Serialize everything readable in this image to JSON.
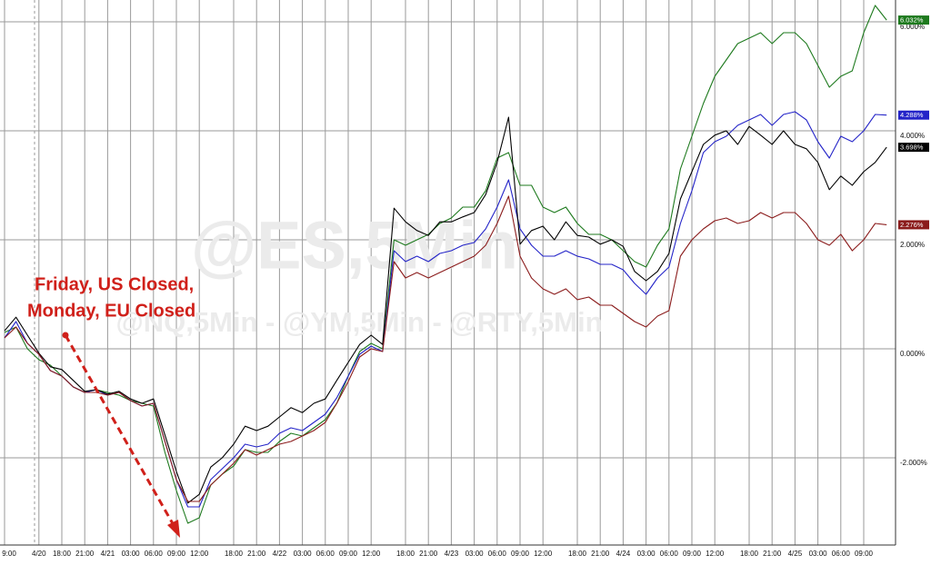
{
  "chart_data": {
    "type": "line",
    "watermark": [
      "@ES,5Min",
      "@NQ,5Min - @YM,5Min - @RTY,5Min"
    ],
    "annotations": [
      "Friday, US Closed,",
      "Monday, EU Closed"
    ],
    "categories": [
      "9:00",
      null,
      null,
      "4/20",
      null,
      "18:00",
      null,
      "21:00",
      null,
      "4/21",
      null,
      "03:00",
      null,
      "06:00",
      null,
      "09:00",
      null,
      "12:00",
      null,
      null,
      "18:00",
      null,
      "21:00",
      null,
      "4/22",
      null,
      "03:00",
      null,
      "06:00",
      null,
      "09:00",
      null,
      "12:00",
      null,
      null,
      "18:00",
      null,
      "21:00",
      null,
      "4/23",
      null,
      "03:00",
      null,
      "06:00",
      null,
      "09:00",
      null,
      "12:00",
      null,
      null,
      "18:00",
      null,
      "21:00",
      null,
      "4/24",
      null,
      "03:00",
      null,
      "06:00",
      null,
      "09:00",
      null,
      "12:00",
      null,
      null,
      "18:00",
      null,
      "21:00",
      null,
      "4/25",
      null,
      "03:00",
      null,
      "06:00",
      null,
      "09:00",
      null,
      null
    ],
    "series": [
      {
        "color": "#1e7a1e",
        "value_label": "6.032%",
        "values": [
          0.3,
          0.4,
          0.0,
          -0.2,
          -0.3,
          -0.5,
          -0.7,
          -0.8,
          -0.75,
          -0.8,
          -0.85,
          -0.95,
          -1.0,
          -1.05,
          -1.9,
          -2.6,
          -3.2,
          -3.1,
          -2.5,
          -2.3,
          -2.15,
          -1.85,
          -1.9,
          -1.9,
          -1.7,
          -1.55,
          -1.6,
          -1.45,
          -1.3,
          -1.0,
          -0.5,
          -0.05,
          0.1,
          0.0,
          2.0,
          1.9,
          2.0,
          2.1,
          2.3,
          2.4,
          2.6,
          2.6,
          2.9,
          3.5,
          3.6,
          3.0,
          3.0,
          2.6,
          2.5,
          2.6,
          2.3,
          2.1,
          2.1,
          2.0,
          1.8,
          1.6,
          1.5,
          1.9,
          2.2,
          3.3,
          3.9,
          4.5,
          5.0,
          5.3,
          5.6,
          5.7,
          5.8,
          5.6,
          5.8,
          5.8,
          5.6,
          5.2,
          4.8,
          5.0,
          5.1,
          5.8,
          6.3,
          6.032
        ]
      },
      {
        "color": "#2424c8",
        "value_label": "4.288%",
        "values": [
          0.2,
          0.5,
          0.1,
          -0.1,
          -0.4,
          -0.5,
          -0.7,
          -0.8,
          -0.75,
          -0.85,
          -0.8,
          -0.95,
          -1.05,
          -1.0,
          -1.7,
          -2.4,
          -2.9,
          -2.9,
          -2.4,
          -2.2,
          -2.0,
          -1.75,
          -1.8,
          -1.75,
          -1.55,
          -1.45,
          -1.5,
          -1.35,
          -1.2,
          -0.9,
          -0.5,
          -0.1,
          0.05,
          -0.05,
          1.8,
          1.6,
          1.7,
          1.6,
          1.75,
          1.8,
          1.9,
          1.95,
          2.2,
          2.6,
          3.1,
          2.2,
          1.9,
          1.7,
          1.7,
          1.8,
          1.7,
          1.65,
          1.55,
          1.55,
          1.45,
          1.2,
          1.0,
          1.3,
          1.5,
          2.3,
          2.9,
          3.6,
          3.8,
          3.9,
          4.1,
          4.2,
          4.3,
          4.1,
          4.3,
          4.35,
          4.2,
          3.8,
          3.5,
          3.9,
          3.8,
          4.0,
          4.3,
          4.288
        ]
      },
      {
        "color": "#000000",
        "value_label": "3.698%",
        "values": [
          0.33,
          0.58,
          0.25,
          -0.08,
          -0.33,
          -0.38,
          -0.58,
          -0.78,
          -0.75,
          -0.83,
          -0.78,
          -0.92,
          -1.0,
          -0.92,
          -1.58,
          -2.25,
          -2.83,
          -2.67,
          -2.17,
          -2.0,
          -1.75,
          -1.42,
          -1.5,
          -1.42,
          -1.25,
          -1.08,
          -1.17,
          -1.0,
          -0.92,
          -0.58,
          -0.25,
          0.08,
          0.25,
          0.08,
          2.58,
          2.33,
          2.17,
          2.08,
          2.33,
          2.33,
          2.42,
          2.5,
          2.83,
          3.42,
          4.25,
          1.92,
          2.17,
          2.25,
          2.0,
          2.33,
          2.08,
          2.05,
          1.92,
          2.0,
          1.88,
          1.42,
          1.25,
          1.42,
          1.75,
          2.75,
          3.25,
          3.75,
          3.92,
          4.0,
          3.75,
          4.08,
          3.92,
          3.75,
          4.0,
          3.75,
          3.67,
          3.42,
          2.92,
          3.17,
          3.0,
          3.25,
          3.42,
          3.698
        ]
      },
      {
        "color": "#8b1c1c",
        "value_label": "2.276%",
        "values": [
          0.2,
          0.4,
          0.1,
          -0.1,
          -0.4,
          -0.5,
          -0.7,
          -0.8,
          -0.8,
          -0.85,
          -0.8,
          -0.95,
          -1.05,
          -1.0,
          -1.7,
          -2.4,
          -2.8,
          -2.8,
          -2.5,
          -2.3,
          -2.1,
          -1.85,
          -1.95,
          -1.85,
          -1.75,
          -1.7,
          -1.6,
          -1.5,
          -1.35,
          -1.0,
          -0.6,
          -0.15,
          0.0,
          -0.05,
          1.6,
          1.3,
          1.4,
          1.3,
          1.4,
          1.5,
          1.6,
          1.7,
          1.9,
          2.3,
          2.8,
          1.7,
          1.3,
          1.1,
          1.0,
          1.1,
          0.9,
          0.95,
          0.8,
          0.8,
          0.65,
          0.5,
          0.4,
          0.6,
          0.7,
          1.7,
          2.0,
          2.2,
          2.35,
          2.4,
          2.3,
          2.35,
          2.5,
          2.4,
          2.5,
          2.5,
          2.3,
          2.0,
          1.9,
          2.1,
          1.8,
          2.0,
          2.3,
          2.276
        ]
      }
    ],
    "ylim": [
      -3.6,
      6.4
    ],
    "yticks": [
      {
        "value": -2,
        "label": "-2.000%"
      },
      {
        "value": 0,
        "label": "0.000%"
      },
      {
        "value": 2,
        "label": "2.000%"
      },
      {
        "value": 4,
        "label": "4.000%"
      },
      {
        "value": 6,
        "label": "6.000%"
      }
    ],
    "grid": true
  }
}
